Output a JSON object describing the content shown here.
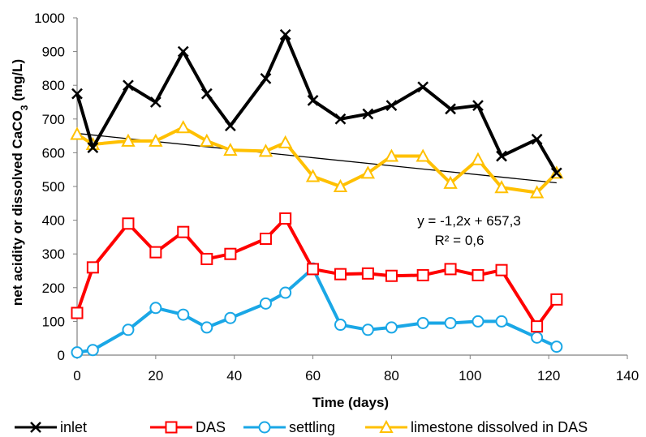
{
  "chart_data": {
    "type": "line",
    "xlabel": "Time (days)",
    "ylabel_main": "net acidity or dissolved CaCO",
    "ylabel_sub": "3",
    "ylabel_unit": " (mg/L)",
    "xlim": [
      0,
      140
    ],
    "ylim": [
      0,
      1000
    ],
    "xticks": [
      0,
      20,
      40,
      60,
      80,
      100,
      120,
      140
    ],
    "yticks": [
      0,
      100,
      200,
      300,
      400,
      500,
      600,
      700,
      800,
      900,
      1000
    ],
    "grid": false,
    "legend_position": "bottom",
    "series": [
      {
        "name": "inlet",
        "color": "#000000",
        "marker": "x",
        "x": [
          0,
          4,
          13,
          20,
          27,
          33,
          39,
          48,
          53,
          60,
          67,
          74,
          80,
          88,
          95,
          102,
          108,
          117,
          122
        ],
        "y": [
          775,
          615,
          800,
          750,
          900,
          775,
          680,
          820,
          950,
          755,
          700,
          715,
          740,
          795,
          730,
          740,
          590,
          640,
          540
        ]
      },
      {
        "name": "DAS",
        "color": "#ff0000",
        "marker": "square",
        "x": [
          0,
          4,
          13,
          20,
          27,
          33,
          39,
          48,
          53,
          60,
          67,
          74,
          80,
          88,
          95,
          102,
          108,
          117,
          122
        ],
        "y": [
          125,
          260,
          390,
          305,
          365,
          285,
          300,
          345,
          405,
          255,
          240,
          242,
          235,
          237,
          255,
          237,
          252,
          85,
          165
        ]
      },
      {
        "name": "settling",
        "color": "#1aa7e6",
        "marker": "circle",
        "x": [
          0,
          4,
          13,
          20,
          27,
          33,
          39,
          48,
          53,
          60,
          67,
          74,
          80,
          88,
          95,
          102,
          108,
          117,
          122
        ],
        "y": [
          8,
          15,
          75,
          140,
          120,
          82,
          110,
          153,
          185,
          257,
          90,
          75,
          82,
          95,
          95,
          100,
          100,
          52,
          25
        ]
      },
      {
        "name": "limestone dissolved in DAS",
        "color": "#ffc000",
        "marker": "triangle",
        "x": [
          0,
          4,
          13,
          20,
          27,
          33,
          39,
          48,
          53,
          60,
          67,
          74,
          80,
          88,
          95,
          102,
          108,
          117,
          122
        ],
        "y": [
          655,
          625,
          635,
          635,
          675,
          635,
          608,
          605,
          630,
          530,
          500,
          540,
          590,
          590,
          510,
          580,
          497,
          482,
          540
        ]
      }
    ],
    "trendline": {
      "of": "limestone dissolved in DAS",
      "color": "#000000",
      "x": [
        0,
        122
      ],
      "equation": "y = -1,2x + 657,3",
      "r2": "R² = 0,6"
    }
  }
}
